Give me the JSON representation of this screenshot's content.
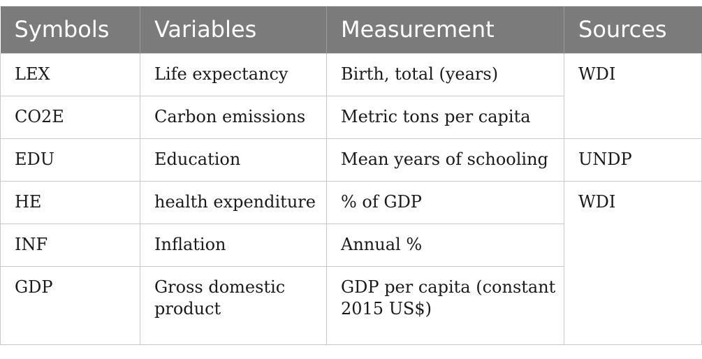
{
  "table": {
    "headers": [
      "Symbols",
      "Variables",
      "Measurement",
      "Sources"
    ],
    "rows": [
      {
        "symbol": "LEX",
        "variable": "Life expectancy",
        "measurement": "Birth, total (years)"
      },
      {
        "symbol": "CO2E",
        "variable": "Carbon emissions",
        "measurement": "Metric tons per capita"
      },
      {
        "symbol": "EDU",
        "variable": "Education",
        "measurement": "Mean years of schooling"
      },
      {
        "symbol": "HE",
        "variable": "health expenditure",
        "measurement": "% of GDP"
      },
      {
        "symbol": "INF",
        "variable": "Inflation",
        "measurement": "Annual %"
      },
      {
        "symbol": "GDP",
        "variable": "Gross domestic product",
        "measurement": "GDP per capita (constant 2015 US$)"
      }
    ],
    "sources": {
      "group1": "WDI",
      "group2": "UNDP",
      "group3": "WDI"
    }
  },
  "colors": {
    "header_bg": "#7b7b7b",
    "header_text": "#ffffff",
    "border": "#c8c8c8"
  }
}
